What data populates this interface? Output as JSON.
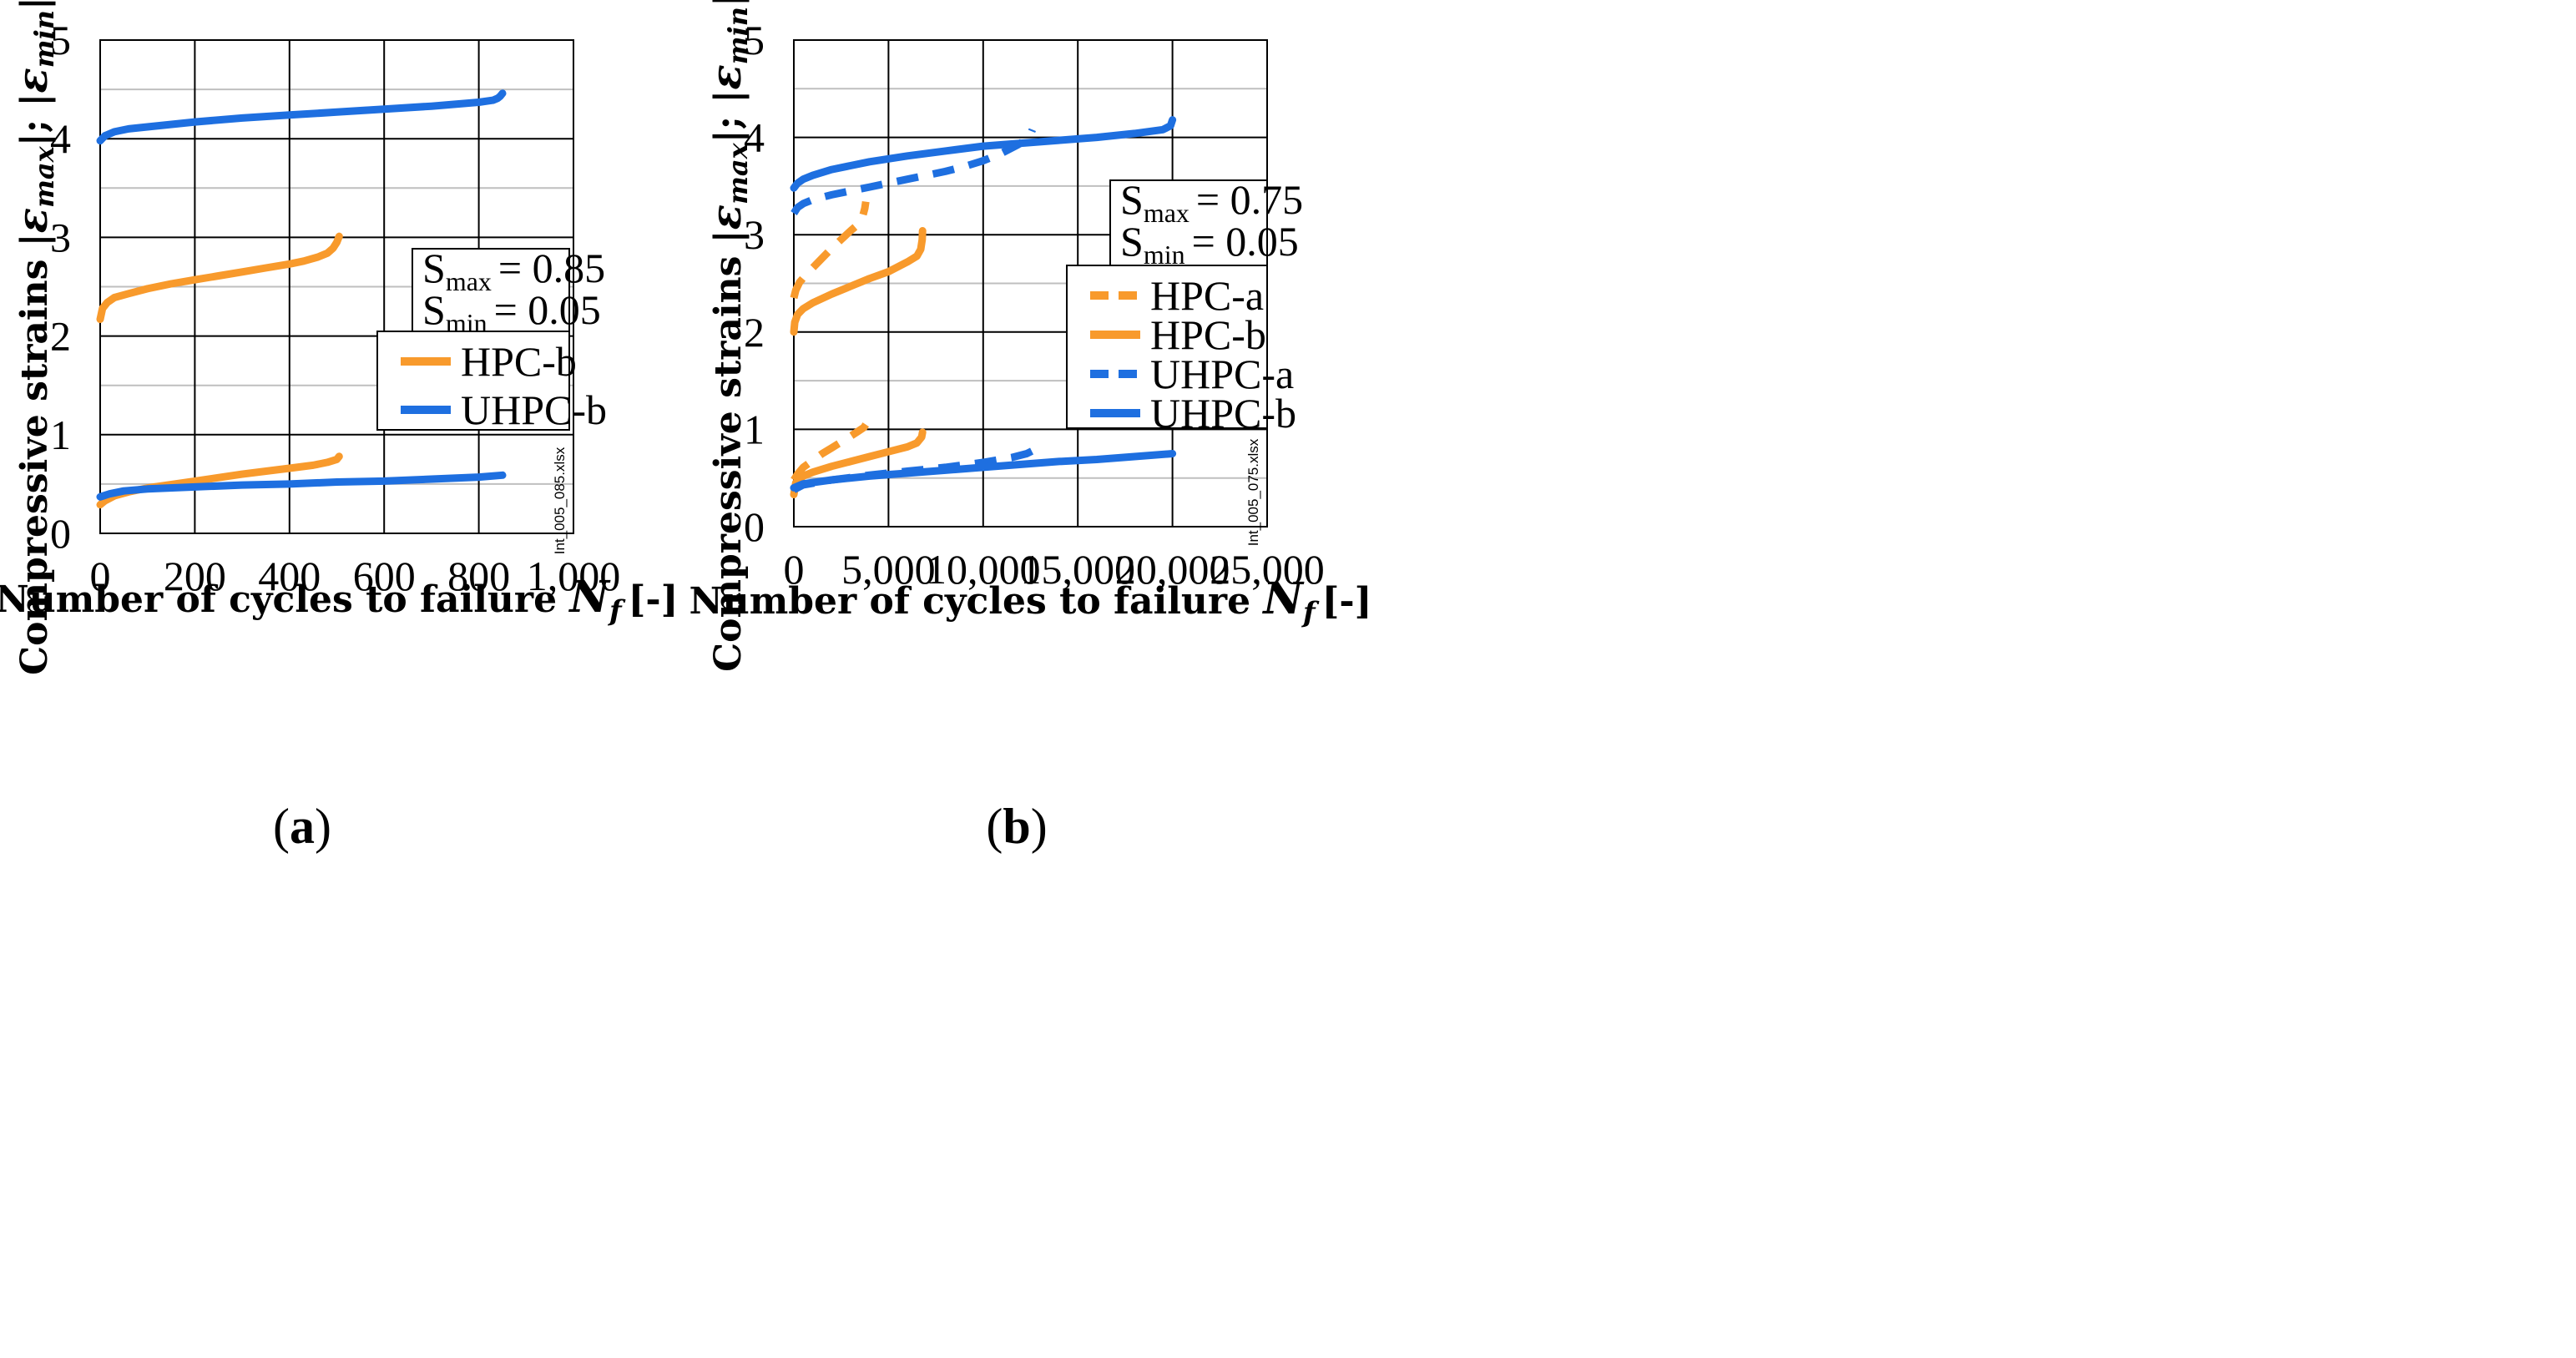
{
  "chart_data": [
    {
      "id": "a",
      "type": "line",
      "panel_label": "a",
      "xlabel": "Number of cycles to failure",
      "xlabel_symbol": "N",
      "xlabel_sub": "f",
      "xlabel_unit": "[-]",
      "ylabel_prefix": "Compressive strains |",
      "ylabel_eps_max": "ε",
      "ylabel_sub_max": "max",
      "ylabel_mid": "|; |",
      "ylabel_eps_min": "ε",
      "ylabel_sub_min": "min",
      "ylabel_suffix": "| [‰]",
      "xlim": [
        0,
        1000
      ],
      "ylim": [
        0,
        5
      ],
      "x_ticks": [
        0,
        200,
        400,
        600,
        800,
        1000
      ],
      "x_tick_labels": [
        "0",
        "200",
        "400",
        "600",
        "800",
        "1,000"
      ],
      "y_ticks": [
        0,
        1,
        2,
        3,
        4,
        5
      ],
      "y_tick_labels": [
        "0",
        "1",
        "2",
        "3",
        "4",
        "5"
      ],
      "minor_y_gridlines": [
        0.5,
        1.5,
        2.5,
        3.5,
        4.5
      ],
      "file_note": "Int_005_085.xlsx",
      "stress_levels": {
        "smax_sym": "S",
        "smax_sub": "max",
        "smax_value": "= 0.85",
        "smin_sym": "S",
        "smin_sub": "min",
        "smin_value": "= 0.05"
      },
      "legend": [
        {
          "label": "HPC-b",
          "color": "#f89a2c",
          "dash": "solid"
        },
        {
          "label": "UHPC-b",
          "color": "#1e6fe0",
          "dash": "solid"
        }
      ],
      "series": [
        {
          "name": "HPC-b (max)",
          "color": "#f89a2c",
          "dash": "solid",
          "x": [
            0,
            5,
            15,
            30,
            60,
            100,
            150,
            200,
            250,
            300,
            350,
            400,
            430,
            460,
            480,
            492,
            500,
            505
          ],
          "y": [
            2.17,
            2.28,
            2.34,
            2.39,
            2.43,
            2.48,
            2.53,
            2.57,
            2.61,
            2.65,
            2.69,
            2.73,
            2.76,
            2.8,
            2.84,
            2.89,
            2.95,
            3.01
          ]
        },
        {
          "name": "HPC-b (min)",
          "color": "#f89a2c",
          "dash": "solid",
          "x": [
            0,
            10,
            30,
            60,
            100,
            200,
            300,
            400,
            450,
            480,
            500,
            505
          ],
          "y": [
            0.29,
            0.33,
            0.38,
            0.42,
            0.46,
            0.53,
            0.6,
            0.66,
            0.69,
            0.72,
            0.75,
            0.78
          ]
        },
        {
          "name": "UHPC-b (max)",
          "color": "#1e6fe0",
          "dash": "solid",
          "x": [
            0,
            10,
            30,
            60,
            100,
            200,
            300,
            400,
            500,
            600,
            700,
            800,
            830,
            840,
            845,
            850
          ],
          "y": [
            3.98,
            4.03,
            4.07,
            4.1,
            4.12,
            4.17,
            4.21,
            4.24,
            4.27,
            4.3,
            4.33,
            4.37,
            4.39,
            4.41,
            4.43,
            4.46
          ]
        },
        {
          "name": "UHPC-b (min)",
          "color": "#1e6fe0",
          "dash": "solid",
          "x": [
            0,
            20,
            50,
            100,
            200,
            300,
            400,
            500,
            600,
            700,
            800,
            850
          ],
          "y": [
            0.37,
            0.4,
            0.43,
            0.45,
            0.47,
            0.49,
            0.5,
            0.52,
            0.53,
            0.55,
            0.57,
            0.59
          ]
        }
      ]
    },
    {
      "id": "b",
      "type": "line",
      "panel_label": "b",
      "xlabel": "Number of cycles to failure",
      "xlabel_symbol": "N",
      "xlabel_sub": "f",
      "xlabel_unit": "[-]",
      "ylabel_prefix": "Compressive strains |",
      "ylabel_eps_max": "ε",
      "ylabel_sub_max": "max",
      "ylabel_mid": "|; |",
      "ylabel_eps_min": "ε",
      "ylabel_sub_min": "min",
      "ylabel_suffix": "| [‰]",
      "xlim": [
        0,
        25000
      ],
      "ylim": [
        0,
        5
      ],
      "x_ticks": [
        0,
        5000,
        10000,
        15000,
        20000,
        25000
      ],
      "x_tick_labels": [
        "0",
        "5,000",
        "10,000",
        "15,000",
        "20,000",
        "25,000"
      ],
      "y_ticks": [
        0,
        1,
        2,
        3,
        4,
        5
      ],
      "y_tick_labels": [
        "0",
        "1",
        "2",
        "3",
        "4",
        "5"
      ],
      "minor_y_gridlines": [
        0.5,
        1.5,
        2.5,
        3.5,
        4.5
      ],
      "file_note": "Int_005_075.xlsx",
      "stress_levels": {
        "smax_sym": "S",
        "smax_sub": "max",
        "smax_value": "= 0.75",
        "smin_sym": "S",
        "smin_sub": "min",
        "smin_value": "= 0.05"
      },
      "legend": [
        {
          "label": "HPC-a",
          "color": "#f89a2c",
          "dash": "dashed"
        },
        {
          "label": "HPC-b",
          "color": "#f89a2c",
          "dash": "solid"
        },
        {
          "label": "UHPC-a",
          "color": "#1e6fe0",
          "dash": "dashed"
        },
        {
          "label": "UHPC-b",
          "color": "#1e6fe0",
          "dash": "solid"
        }
      ],
      "series": [
        {
          "name": "HPC-a (max)",
          "color": "#f89a2c",
          "dash": "dashed",
          "x": [
            0,
            100,
            300,
            600,
            1000,
            1500,
            2000,
            2500,
            3000,
            3300,
            3500,
            3650,
            3750,
            3800
          ],
          "y": [
            2.35,
            2.43,
            2.51,
            2.58,
            2.66,
            2.76,
            2.86,
            2.95,
            3.04,
            3.09,
            3.14,
            3.2,
            3.27,
            3.34
          ]
        },
        {
          "name": "HPC-a (min)",
          "color": "#f89a2c",
          "dash": "dashed",
          "x": [
            0,
            200,
            500,
            1000,
            1500,
            2000,
            2500,
            3000,
            3400,
            3700,
            3800
          ],
          "y": [
            0.48,
            0.54,
            0.61,
            0.68,
            0.75,
            0.81,
            0.87,
            0.93,
            0.98,
            1.02,
            1.05
          ]
        },
        {
          "name": "HPC-b (max)",
          "color": "#f89a2c",
          "dash": "solid",
          "x": [
            0,
            50,
            200,
            500,
            1000,
            2000,
            3000,
            4000,
            5000,
            6000,
            6500,
            6700,
            6780,
            6800
          ],
          "y": [
            2.0,
            2.1,
            2.18,
            2.24,
            2.3,
            2.39,
            2.47,
            2.55,
            2.62,
            2.72,
            2.78,
            2.85,
            2.95,
            3.04
          ]
        },
        {
          "name": "HPC-b (min)",
          "color": "#f89a2c",
          "dash": "solid",
          "x": [
            0,
            100,
            500,
            1000,
            2000,
            3000,
            4000,
            5000,
            6000,
            6500,
            6750,
            6800
          ],
          "y": [
            0.33,
            0.45,
            0.52,
            0.56,
            0.62,
            0.67,
            0.72,
            0.77,
            0.82,
            0.86,
            0.92,
            0.97
          ]
        },
        {
          "name": "UHPC-a (max)",
          "color": "#1e6fe0",
          "dash": "dashed",
          "x": [
            0,
            200,
            500,
            1000,
            2000,
            3000,
            4000,
            5000,
            6000,
            7000,
            8000,
            9000,
            10000,
            11000,
            11800,
            12300,
            12500,
            12600
          ],
          "y": [
            3.22,
            3.28,
            3.32,
            3.36,
            3.41,
            3.45,
            3.49,
            3.53,
            3.57,
            3.61,
            3.65,
            3.7,
            3.76,
            3.84,
            3.92,
            3.98,
            4.03,
            4.08
          ]
        },
        {
          "name": "UHPC-a (min)",
          "color": "#1e6fe0",
          "dash": "dashed",
          "x": [
            0,
            500,
            2000,
            4000,
            6000,
            8000,
            10000,
            11500,
            12300,
            12600
          ],
          "y": [
            0.38,
            0.43,
            0.48,
            0.53,
            0.57,
            0.61,
            0.66,
            0.71,
            0.75,
            0.78
          ]
        },
        {
          "name": "UHPC-b (max)",
          "color": "#1e6fe0",
          "dash": "solid",
          "x": [
            0,
            200,
            500,
            1000,
            2000,
            4000,
            6000,
            8000,
            10000,
            12000,
            14000,
            16000,
            18000,
            19500,
            19900,
            20000
          ],
          "y": [
            3.48,
            3.53,
            3.57,
            3.61,
            3.67,
            3.75,
            3.81,
            3.86,
            3.91,
            3.94,
            3.97,
            4.0,
            4.04,
            4.08,
            4.12,
            4.18
          ]
        },
        {
          "name": "UHPC-b (min)",
          "color": "#1e6fe0",
          "dash": "solid",
          "x": [
            0,
            500,
            2000,
            4000,
            6000,
            8000,
            10000,
            12000,
            14000,
            16000,
            18000,
            20000
          ],
          "y": [
            0.4,
            0.44,
            0.48,
            0.52,
            0.55,
            0.58,
            0.61,
            0.64,
            0.67,
            0.69,
            0.72,
            0.75
          ]
        }
      ]
    }
  ]
}
